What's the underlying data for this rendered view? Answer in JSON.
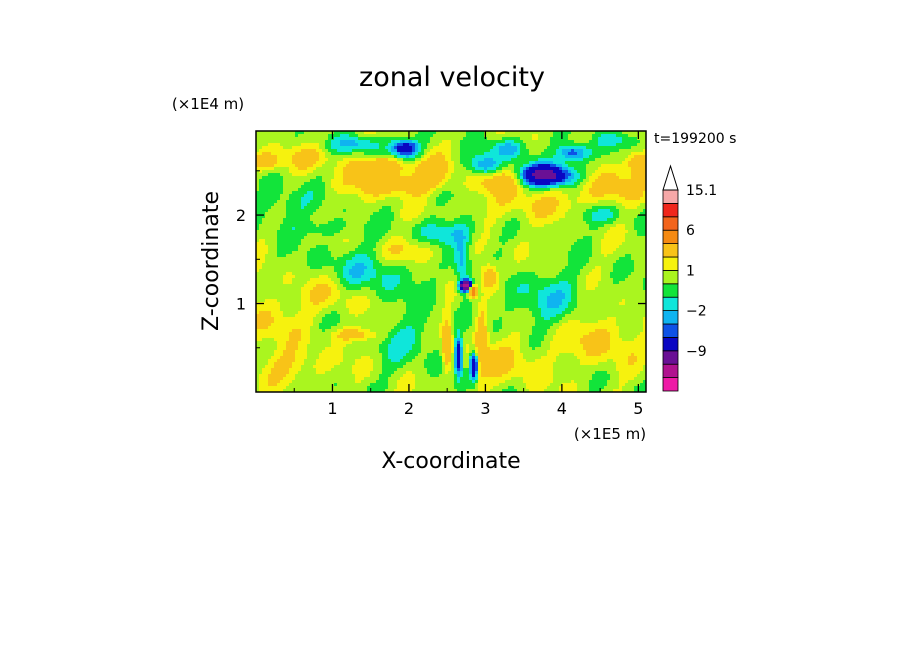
{
  "chart_data": {
    "type": "heatmap",
    "title": "zonal velocity",
    "xlabel": "X-coordinate",
    "ylabel": "Z-coordinate",
    "x_scale_label": "(×1E5 m)",
    "y_scale_label": "(×1E4 m)",
    "time_label": "t=199200 s",
    "xlim": [
      0,
      5.1
    ],
    "ylim": [
      0,
      2.95
    ],
    "x_ticks": [
      {
        "value": 1,
        "label": "1"
      },
      {
        "value": 2,
        "label": "2"
      },
      {
        "value": 3,
        "label": "3"
      },
      {
        "value": 4,
        "label": "4"
      },
      {
        "value": 5,
        "label": "5"
      }
    ],
    "y_ticks": [
      {
        "value": 1,
        "label": "1"
      },
      {
        "value": 2,
        "label": "2"
      }
    ],
    "colorbar": {
      "levels": [
        -15,
        -12,
        -9,
        -6,
        -3,
        -2,
        -1,
        0,
        1,
        2,
        3,
        6,
        9,
        12,
        15.1
      ],
      "colors": [
        "#ee1aa6",
        "#b0128f",
        "#6a1095",
        "#0a06c2",
        "#0e52e6",
        "#0fb4f0",
        "#0fe6da",
        "#12e43a",
        "#aaf51f",
        "#f6f20e",
        "#f8c318",
        "#f58a12",
        "#f2641c",
        "#f0261b",
        "#f6a8a8"
      ],
      "labels": [
        {
          "value": 15.1,
          "label": "15.1"
        },
        {
          "value": 6,
          "label": "6"
        },
        {
          "value": 1,
          "label": "1"
        },
        {
          "value": -2,
          "label": "−2"
        },
        {
          "value": -9,
          "label": "−9"
        }
      ],
      "overflow_arrow_top": true
    },
    "background_value": 1.5,
    "features": [
      {
        "x": 0.35,
        "z": 2.1,
        "sx": 0.35,
        "sz": 0.25,
        "amp": -1.5
      },
      {
        "x": 0.15,
        "z": 0.8,
        "sx": 0.35,
        "sz": 0.3,
        "amp": 1.5
      },
      {
        "x": 1.0,
        "z": 1.1,
        "sx": 0.5,
        "sz": 0.2,
        "amp": 1.6
      },
      {
        "x": 1.3,
        "z": 0.65,
        "sx": 0.3,
        "sz": 0.08,
        "amp": 2.8
      },
      {
        "x": 1.5,
        "z": 1.35,
        "sx": 0.6,
        "sz": 0.3,
        "amp": -2.0
      },
      {
        "x": 0.7,
        "z": 2.65,
        "sx": 0.35,
        "sz": 0.12,
        "amp": 1.8
      },
      {
        "x": 0.1,
        "z": 2.6,
        "sx": 0.2,
        "sz": 0.1,
        "amp": 3.0
      },
      {
        "x": 1.8,
        "z": 2.35,
        "sx": 0.5,
        "sz": 0.12,
        "amp": 3.5
      },
      {
        "x": 1.6,
        "z": 2.55,
        "sx": 0.35,
        "sz": 0.1,
        "amp": 4.0
      },
      {
        "x": 1.35,
        "z": 2.8,
        "sx": 0.3,
        "sz": 0.1,
        "amp": -3.0
      },
      {
        "x": 1.95,
        "z": 2.75,
        "sx": 0.18,
        "sz": 0.1,
        "amp": -6.5
      },
      {
        "x": 2.3,
        "z": 2.5,
        "sx": 0.25,
        "sz": 0.15,
        "amp": 2.5
      },
      {
        "x": 2.5,
        "z": 1.8,
        "sx": 0.4,
        "sz": 0.15,
        "amp": -2.5
      },
      {
        "x": 2.75,
        "z": 1.2,
        "sx": 0.08,
        "sz": 0.06,
        "amp": -14
      },
      {
        "x": 2.83,
        "z": 1.15,
        "sx": 0.05,
        "sz": 0.07,
        "amp": 10
      },
      {
        "x": 2.7,
        "z": 1.45,
        "sx": 0.1,
        "sz": 0.3,
        "amp": -3.0
      },
      {
        "x": 2.5,
        "z": 0.55,
        "sx": 0.06,
        "sz": 0.25,
        "amp": 5
      },
      {
        "x": 2.65,
        "z": 0.4,
        "sx": 0.05,
        "sz": 0.2,
        "amp": -7
      },
      {
        "x": 2.85,
        "z": 0.3,
        "sx": 0.05,
        "sz": 0.15,
        "amp": -8
      },
      {
        "x": 2.95,
        "z": 0.6,
        "sx": 0.08,
        "sz": 0.35,
        "amp": 3.5
      },
      {
        "x": 3.05,
        "z": 1.3,
        "sx": 0.12,
        "sz": 0.15,
        "amp": 4.0
      },
      {
        "x": 3.2,
        "z": 2.4,
        "sx": 0.3,
        "sz": 0.15,
        "amp": 3.0
      },
      {
        "x": 3.0,
        "z": 2.55,
        "sx": 0.2,
        "sz": 0.12,
        "amp": -4
      },
      {
        "x": 3.3,
        "z": 2.75,
        "sx": 0.25,
        "sz": 0.12,
        "amp": -3
      },
      {
        "x": 3.8,
        "z": 2.45,
        "sx": 0.35,
        "sz": 0.12,
        "amp": -9
      },
      {
        "x": 4.15,
        "z": 2.7,
        "sx": 0.2,
        "sz": 0.1,
        "amp": -5
      },
      {
        "x": 3.6,
        "z": 2.1,
        "sx": 0.6,
        "sz": 0.2,
        "amp": 1.4
      },
      {
        "x": 4.6,
        "z": 2.3,
        "sx": 0.4,
        "sz": 0.2,
        "amp": 2.5
      },
      {
        "x": 4.5,
        "z": 2.0,
        "sx": 0.35,
        "sz": 0.12,
        "amp": -2.0
      },
      {
        "x": 5.0,
        "z": 2.6,
        "sx": 0.15,
        "sz": 0.12,
        "amp": 3.5
      },
      {
        "x": 4.7,
        "z": 2.85,
        "sx": 0.3,
        "sz": 0.1,
        "amp": -1.5
      },
      {
        "x": 3.8,
        "z": 1.05,
        "sx": 0.6,
        "sz": 0.3,
        "amp": -1.8
      },
      {
        "x": 4.5,
        "z": 0.6,
        "sx": 0.4,
        "sz": 0.3,
        "amp": 2.0
      },
      {
        "x": 3.3,
        "z": 0.35,
        "sx": 0.5,
        "sz": 0.25,
        "amp": 1.6
      },
      {
        "x": 0.5,
        "z": 0.3,
        "sx": 0.5,
        "sz": 0.2,
        "amp": 1.5
      },
      {
        "x": 2.0,
        "z": 0.6,
        "sx": 0.5,
        "sz": 0.3,
        "amp": -1.4
      },
      {
        "x": 2.0,
        "z": 1.6,
        "sx": 0.4,
        "sz": 0.15,
        "amp": 2.0
      },
      {
        "x": 0.9,
        "z": 1.85,
        "sx": 0.4,
        "sz": 0.1,
        "amp": -1.2
      }
    ]
  }
}
